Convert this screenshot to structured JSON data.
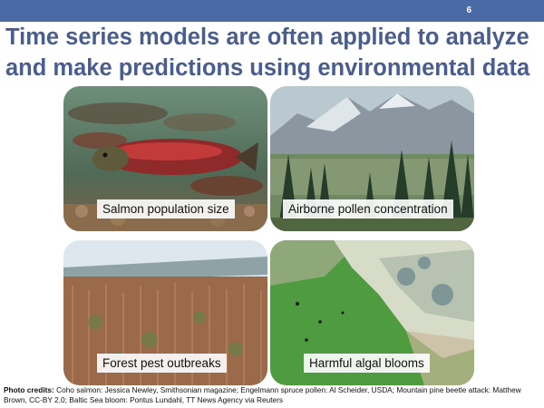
{
  "slide": {
    "number": "6",
    "title_line1": "Time series models are often applied to analyze",
    "title_line2": "and make predictions using environmental data"
  },
  "tiles": [
    {
      "caption": "Salmon population size",
      "image": "underwater salmon photo"
    },
    {
      "caption": "Airborne pollen concentration",
      "image": "mountain spruce forest photo"
    },
    {
      "caption": "Forest pest outbreaks",
      "image": "beetle-killed forest photo"
    },
    {
      "caption": "Harmful algal blooms",
      "image": "algal bloom aerial photo"
    }
  ],
  "credits": {
    "label": "Photo credits:",
    "text": " Coho salmon: Jessica Newley, Smithsonian magazine; Engelmann spruce pollen: Al Scheider, USDA; Mountain pine beetle attack: Matthew Brown, CC-BY 2.0; Baltic Sea bloom: Pontus Lundahl, TT News Agency via Reuters"
  },
  "colors": {
    "header_bar": "#4a6aa5",
    "title_text": "#4a5d8f"
  }
}
